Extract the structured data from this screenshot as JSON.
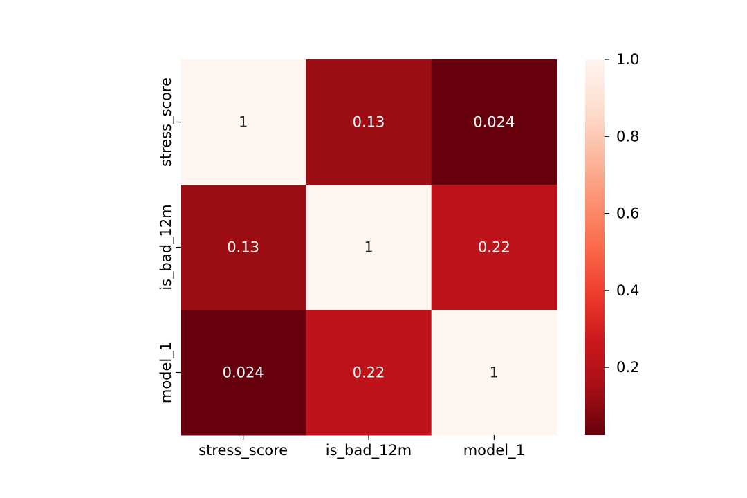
{
  "chart_data": {
    "type": "heatmap",
    "x_categories": [
      "stress_score",
      "is_bad_12m",
      "model_1"
    ],
    "y_categories": [
      "stress_score",
      "is_bad_12m",
      "model_1"
    ],
    "values": [
      [
        1,
        0.13,
        0.024
      ],
      [
        0.13,
        1,
        0.22
      ],
      [
        0.024,
        0.22,
        1
      ]
    ],
    "cell_labels": [
      [
        "1",
        "0.13",
        "0.024"
      ],
      [
        "0.13",
        "1",
        "0.22"
      ],
      [
        "0.024",
        "0.22",
        "1"
      ]
    ],
    "colormap": "Reds_r",
    "color_range": [
      0.024,
      1
    ],
    "colorbar": {
      "ticks": [
        0.2,
        0.4,
        0.6,
        0.8,
        1.0
      ],
      "tick_labels": [
        "0.2",
        "0.4",
        "0.6",
        "0.8",
        "1.0"
      ]
    },
    "title": "",
    "xlabel": "",
    "ylabel": ""
  }
}
